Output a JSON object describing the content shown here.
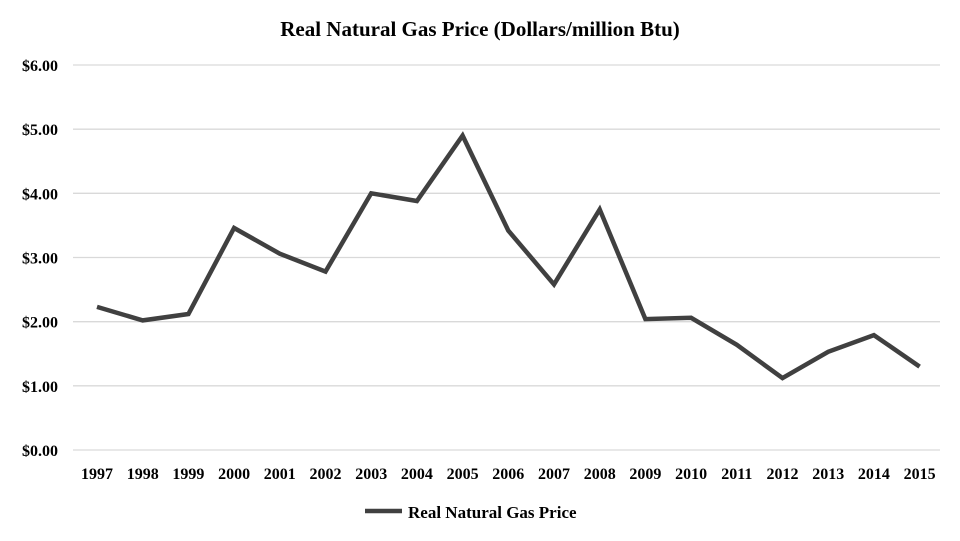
{
  "chart_data": {
    "type": "line",
    "title": "Real Natural Gas Price (Dollars/million Btu)",
    "xlabel": "",
    "ylabel": "",
    "categories": [
      "1997",
      "1998",
      "1999",
      "2000",
      "2001",
      "2002",
      "2003",
      "2004",
      "2005",
      "2006",
      "2007",
      "2008",
      "2009",
      "2010",
      "2011",
      "2012",
      "2013",
      "2014",
      "2015"
    ],
    "series": [
      {
        "name": "Real Natural Gas Price",
        "color": "#404040",
        "values": [
          2.23,
          2.02,
          2.12,
          3.46,
          3.06,
          2.78,
          4.0,
          3.88,
          4.9,
          3.42,
          2.58,
          3.75,
          2.04,
          2.06,
          1.64,
          1.12,
          1.53,
          1.79,
          1.3
        ]
      }
    ],
    "ylim": [
      0,
      6
    ],
    "yticks": [
      0,
      1,
      2,
      3,
      4,
      5,
      6
    ],
    "ytick_labels": [
      "$0.00",
      "$1.00",
      "$2.00",
      "$3.00",
      "$4.00",
      "$5.00",
      "$6.00"
    ],
    "grid": true,
    "legend": {
      "position": "bottom-center",
      "entries": [
        "Real Natural Gas Price"
      ]
    },
    "colors": {
      "line": "#404040",
      "grid": "#d9d9d9",
      "text": "#000000",
      "background": "#ffffff"
    }
  }
}
